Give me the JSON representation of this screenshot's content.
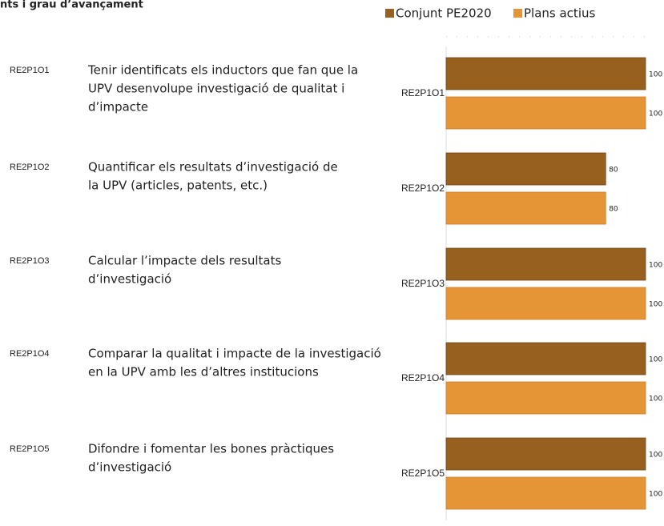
{
  "header_title": "nts i grau d’avançament",
  "objectives": [
    {
      "code": "RE2P1O1",
      "lines": [
        "Tenir identificats els inductors que fan que la",
        "UPV desenvolupe investigació de qualitat i",
        "d’impacte"
      ]
    },
    {
      "code": "RE2P1O2",
      "lines": [
        "Quantificar els resultats d’investigació de",
        "la UPV (articles, patents, etc.)"
      ]
    },
    {
      "code": "RE2P1O3",
      "lines": [
        "Calcular l’impacte dels resultats",
        "d’investigació"
      ]
    },
    {
      "code": "RE2P1O4",
      "lines": [
        "Comparar la qualitat i impacte de la investigació",
        "en la UPV amb les d’altres institucions"
      ]
    },
    {
      "code": "RE2P1O5",
      "lines": [
        "Difondre i fomentar les bones pràctiques",
        "d’investigació"
      ]
    }
  ],
  "chart_data": {
    "type": "hbar",
    "categories": [
      "RE2P1O1",
      "RE2P1O2",
      "RE2P1O3",
      "RE2P1O4",
      "RE2P1O5"
    ],
    "series": [
      {
        "name": "Conjunt PE2020",
        "color": "#97601f",
        "values": [
          100,
          80,
          100,
          100,
          100
        ]
      },
      {
        "name": "Plans actius",
        "color": "#e59536",
        "values": [
          100,
          80,
          100,
          100,
          100
        ]
      }
    ],
    "xlim": [
      0,
      100
    ]
  }
}
